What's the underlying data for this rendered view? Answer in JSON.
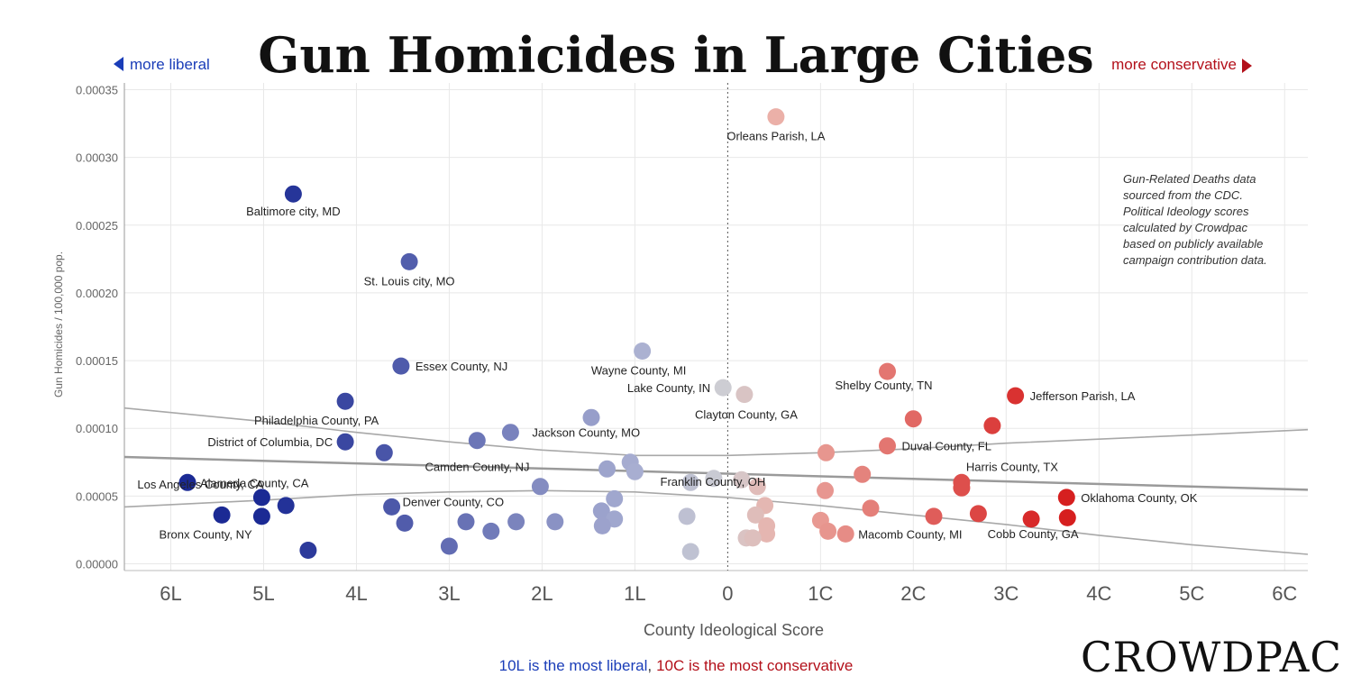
{
  "chart_data": {
    "type": "scatter",
    "title": "Gun Homicides in Large Cities",
    "nav_left": "more liberal",
    "nav_right": "more conservative",
    "xlabel": "County Ideological Score",
    "ylabel": "Gun Homicides / 100,000 pop.",
    "xlim": [
      -6.5,
      6.25
    ],
    "ylim": [
      -5e-06,
      0.000355
    ],
    "x_ticks": [
      {
        "v": -6,
        "label": "6L"
      },
      {
        "v": -5,
        "label": "5L"
      },
      {
        "v": -4,
        "label": "4L"
      },
      {
        "v": -3,
        "label": "3L"
      },
      {
        "v": -2,
        "label": "2L"
      },
      {
        "v": -1,
        "label": "1L"
      },
      {
        "v": 0,
        "label": "0"
      },
      {
        "v": 1,
        "label": "1C"
      },
      {
        "v": 2,
        "label": "2C"
      },
      {
        "v": 3,
        "label": "3C"
      },
      {
        "v": 4,
        "label": "4C"
      },
      {
        "v": 5,
        "label": "5C"
      },
      {
        "v": 6,
        "label": "6C"
      }
    ],
    "y_ticks": [
      {
        "v": 0,
        "label": "0.00000"
      },
      {
        "v": 5e-05,
        "label": "0.00005"
      },
      {
        "v": 0.0001,
        "label": "0.00010"
      },
      {
        "v": 0.00015,
        "label": "0.00015"
      },
      {
        "v": 0.0002,
        "label": "0.00020"
      },
      {
        "v": 0.00025,
        "label": "0.00025"
      },
      {
        "v": 0.0003,
        "label": "0.00030"
      },
      {
        "v": 0.00035,
        "label": "0.00035"
      }
    ],
    "grid": true,
    "trend": {
      "slope": -1.9e-06,
      "intercept": 6.65e-05,
      "band_low": {
        "x": [
          -6.5,
          -5,
          -4,
          -3,
          -2,
          -1,
          0,
          1,
          2,
          3,
          4,
          5,
          6.25
        ],
        "y": [
          4.2e-05,
          4.7e-05,
          5.1e-05,
          5.3e-05,
          5.4e-05,
          5.3e-05,
          4.9e-05,
          4.3e-05,
          3.6e-05,
          2.9e-05,
          2.1e-05,
          1.4e-05,
          7e-06
        ]
      },
      "band_high": {
        "x": [
          -6.5,
          -5,
          -4,
          -3,
          -2,
          -1,
          0,
          1,
          2,
          3,
          4,
          5,
          6.25
        ],
        "y": [
          0.000115,
          0.000105,
          9.7e-05,
          9e-05,
          8.4e-05,
          8e-05,
          8e-05,
          8.2e-05,
          8.5e-05,
          8.9e-05,
          9.2e-05,
          9.5e-05,
          9.9e-05
        ]
      }
    },
    "points": [
      {
        "x": 0.52,
        "y": 0.00033,
        "label": "Orleans Parish, LA"
      },
      {
        "x": -4.68,
        "y": 0.000273,
        "label": "Baltimore city, MD"
      },
      {
        "x": -3.43,
        "y": 0.000223,
        "label": "St. Louis city, MO"
      },
      {
        "x": -3.52,
        "y": 0.000146,
        "label": "Essex County, NJ"
      },
      {
        "x": -0.92,
        "y": 0.000157,
        "label": "Wayne County, MI"
      },
      {
        "x": -0.05,
        "y": 0.00013,
        "label": "Lake County, IN"
      },
      {
        "x": 0.18,
        "y": 0.000125,
        "label": "Clayton County, GA"
      },
      {
        "x": 1.72,
        "y": 0.000142,
        "label": "Shelby County, TN"
      },
      {
        "x": 3.1,
        "y": 0.000124,
        "label": "Jefferson Parish, LA"
      },
      {
        "x": -4.12,
        "y": 0.00012,
        "label": "Philadelphia County, PA"
      },
      {
        "x": -4.12,
        "y": 9e-05,
        "label": "District of Columbia, DC"
      },
      {
        "x": -2.34,
        "y": 9.7e-05,
        "label": "Jackson County, MO"
      },
      {
        "x": -1.47,
        "y": 0.000108,
        "label": ""
      },
      {
        "x": -2.7,
        "y": 9.1e-05,
        "label": ""
      },
      {
        "x": -3.7,
        "y": 8.2e-05,
        "label": ""
      },
      {
        "x": -1.3,
        "y": 7e-05,
        "label": "Camden County, NJ"
      },
      {
        "x": -1.05,
        "y": 7.5e-05,
        "label": ""
      },
      {
        "x": -1.0,
        "y": 6.8e-05,
        "label": ""
      },
      {
        "x": -0.15,
        "y": 6.3e-05,
        "label": "Franklin County, OH"
      },
      {
        "x": -0.4,
        "y": 6e-05,
        "label": ""
      },
      {
        "x": 2.0,
        "y": 0.000107,
        "label": ""
      },
      {
        "x": 2.85,
        "y": 0.000102,
        "label": ""
      },
      {
        "x": 1.72,
        "y": 8.7e-05,
        "label": "Duval County, FL"
      },
      {
        "x": 1.06,
        "y": 8.2e-05,
        "label": ""
      },
      {
        "x": 1.45,
        "y": 6.6e-05,
        "label": ""
      },
      {
        "x": 2.52,
        "y": 6e-05,
        "label": "Harris County, TX"
      },
      {
        "x": 2.52,
        "y": 5.6e-05,
        "label": ""
      },
      {
        "x": 1.05,
        "y": 5.4e-05,
        "label": ""
      },
      {
        "x": 0.15,
        "y": 6.2e-05,
        "label": ""
      },
      {
        "x": 0.32,
        "y": 5.7e-05,
        "label": ""
      },
      {
        "x": -5.82,
        "y": 6e-05,
        "label": "Alameda County, CA"
      },
      {
        "x": -5.02,
        "y": 4.9e-05,
        "label": "Los Angeles County, CA"
      },
      {
        "x": -4.76,
        "y": 4.3e-05,
        "label": ""
      },
      {
        "x": -5.45,
        "y": 3.6e-05,
        "label": "Bronx County, NY"
      },
      {
        "x": -5.02,
        "y": 3.5e-05,
        "label": ""
      },
      {
        "x": -4.52,
        "y": 1e-05,
        "label": ""
      },
      {
        "x": -3.62,
        "y": 4.2e-05,
        "label": "Denver County, CO"
      },
      {
        "x": -3.48,
        "y": 3e-05,
        "label": ""
      },
      {
        "x": -2.82,
        "y": 3.1e-05,
        "label": ""
      },
      {
        "x": -2.55,
        "y": 2.4e-05,
        "label": ""
      },
      {
        "x": -2.28,
        "y": 3.1e-05,
        "label": ""
      },
      {
        "x": -3.0,
        "y": 1.3e-05,
        "label": ""
      },
      {
        "x": -2.02,
        "y": 5.7e-05,
        "label": ""
      },
      {
        "x": -1.86,
        "y": 3.1e-05,
        "label": ""
      },
      {
        "x": -1.22,
        "y": 4.8e-05,
        "label": ""
      },
      {
        "x": -1.36,
        "y": 3.9e-05,
        "label": ""
      },
      {
        "x": -1.22,
        "y": 3.3e-05,
        "label": ""
      },
      {
        "x": -1.35,
        "y": 2.8e-05,
        "label": ""
      },
      {
        "x": -0.44,
        "y": 3.5e-05,
        "label": ""
      },
      {
        "x": -0.4,
        "y": 9e-06,
        "label": ""
      },
      {
        "x": 0.4,
        "y": 4.3e-05,
        "label": ""
      },
      {
        "x": 0.3,
        "y": 3.6e-05,
        "label": ""
      },
      {
        "x": 0.42,
        "y": 2.8e-05,
        "label": ""
      },
      {
        "x": 0.42,
        "y": 2.2e-05,
        "label": ""
      },
      {
        "x": 0.2,
        "y": 1.9e-05,
        "label": ""
      },
      {
        "x": 0.27,
        "y": 1.9e-05,
        "label": ""
      },
      {
        "x": 1.0,
        "y": 3.2e-05,
        "label": ""
      },
      {
        "x": 1.08,
        "y": 2.4e-05,
        "label": ""
      },
      {
        "x": 1.27,
        "y": 2.2e-05,
        "label": "Macomb County, MI"
      },
      {
        "x": 1.54,
        "y": 4.1e-05,
        "label": ""
      },
      {
        "x": 2.22,
        "y": 3.5e-05,
        "label": ""
      },
      {
        "x": 2.7,
        "y": 3.7e-05,
        "label": ""
      },
      {
        "x": 3.27,
        "y": 3.3e-05,
        "label": "Cobb County, GA"
      },
      {
        "x": 3.66,
        "y": 3.4e-05,
        "label": ""
      },
      {
        "x": 3.65,
        "y": 4.9e-05,
        "label": "Oklahoma County, OK"
      }
    ],
    "note": [
      "Gun-Related Deaths data",
      "sourced from the CDC.",
      "Political Ideology scores",
      "calculated by Crowdpac",
      "based on publicly available",
      "campaign contribution data."
    ],
    "footer_liberal": "10L is the most liberal",
    "footer_sep": ",",
    "footer_conservative": "10C is the most conservative",
    "brand": "CROWDPAC",
    "colors": {
      "liberal_strong": "#1b2a94",
      "liberal_light": "#a8aed1",
      "neutral": "#cfcfd3",
      "conservative_light": "#ebb0a8",
      "conservative_strong": "#d61f1f",
      "liberal_text": "#1a3db8",
      "conservative_text": "#b3101a"
    }
  }
}
